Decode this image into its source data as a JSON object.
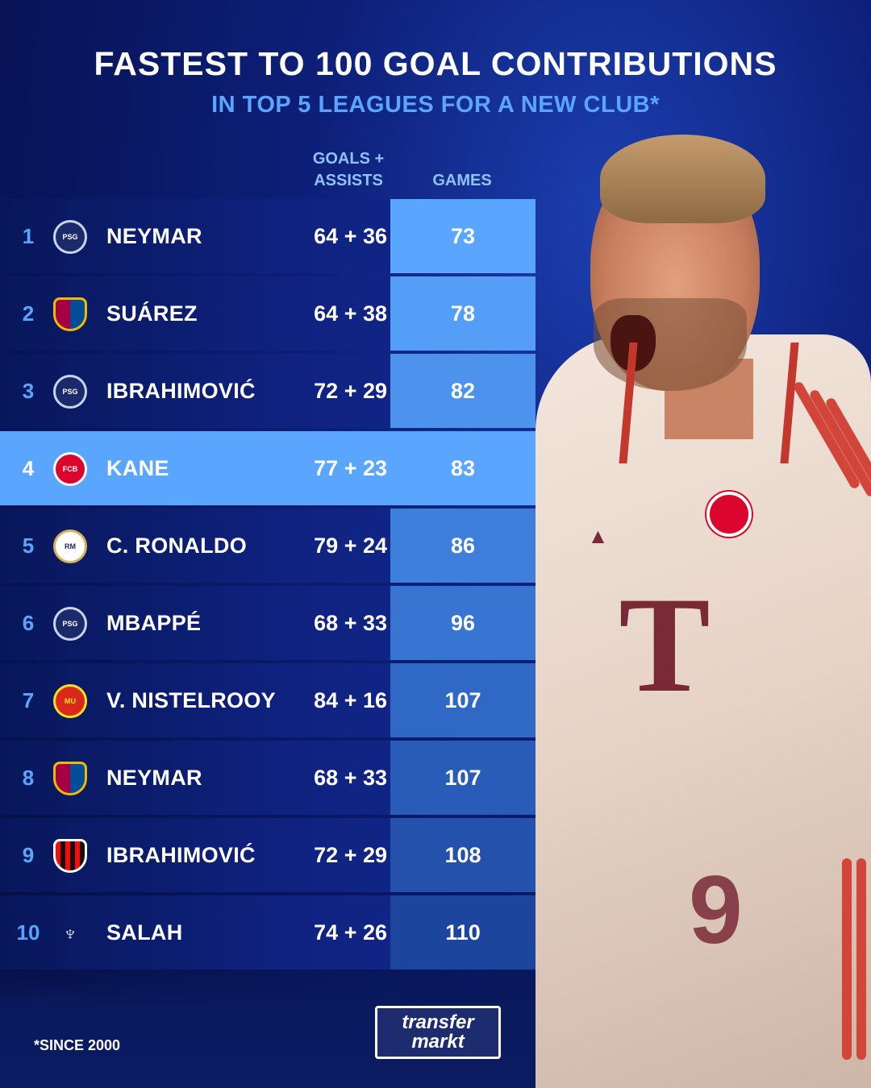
{
  "title": "FASTEST TO 100 GOAL CONTRIBUTIONS",
  "subtitle": "IN TOP 5 LEAGUES FOR A NEW CLUB*",
  "columns": {
    "goals_assists_line1": "GOALS +",
    "goals_assists_line2": "ASSISTS",
    "games": "GAMES"
  },
  "rows": [
    {
      "rank": "1",
      "club_icon": "psg-crest-icon",
      "name": "NEYMAR",
      "ga": "64 + 36",
      "games": "73"
    },
    {
      "rank": "2",
      "club_icon": "barcelona-crest-icon",
      "name": "SUÁREZ",
      "ga": "64 + 38",
      "games": "78"
    },
    {
      "rank": "3",
      "club_icon": "psg-crest-icon",
      "name": "IBRAHIMOVIĆ",
      "ga": "72 + 29",
      "games": "82"
    },
    {
      "rank": "4",
      "club_icon": "bayern-crest-icon",
      "name": "KANE",
      "ga": "77 + 23",
      "games": "83"
    },
    {
      "rank": "5",
      "club_icon": "real-madrid-crest-icon",
      "name": "C. RONALDO",
      "ga": "79 + 24",
      "games": "86"
    },
    {
      "rank": "6",
      "club_icon": "psg-crest-icon",
      "name": "MBAPPÉ",
      "ga": "68 + 33",
      "games": "96"
    },
    {
      "rank": "7",
      "club_icon": "man-utd-crest-icon",
      "name": "V. NISTELROOY",
      "ga": "84 + 16",
      "games": "107"
    },
    {
      "rank": "8",
      "club_icon": "barcelona-crest-icon",
      "name": "NEYMAR",
      "ga": "68 + 33",
      "games": "107"
    },
    {
      "rank": "9",
      "club_icon": "ac-milan-crest-icon",
      "name": "IBRAHIMOVIĆ",
      "ga": "72 + 29",
      "games": "108"
    },
    {
      "rank": "10",
      "club_icon": "liverpool-crest-icon",
      "name": "SALAH",
      "ga": "74 + 26",
      "games": "110"
    }
  ],
  "colors": {
    "accent": "#5aa6ff",
    "background": "#0d1f78",
    "highlight_row": "#5aa6ff"
  },
  "footnote": "*SINCE 2000",
  "brand": {
    "line1": "transfer",
    "line2": "markt"
  }
}
